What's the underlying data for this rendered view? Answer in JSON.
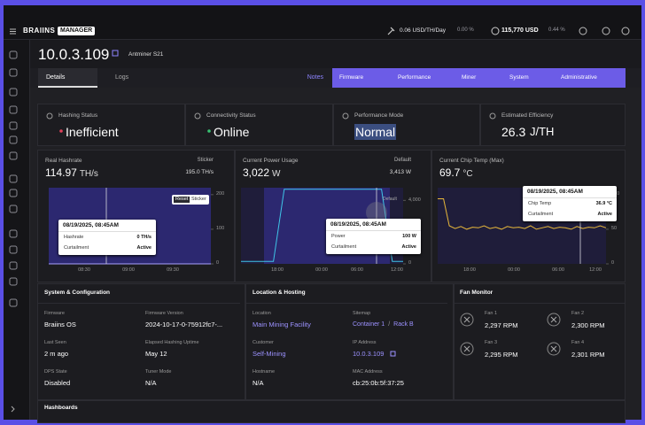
{
  "topbar": {
    "logo": "BRAIINS",
    "logo_tag": "MANAGER",
    "hashprice": "0.06 USD/TH/Day",
    "hashprice_change": "0.00 %",
    "btc_price": "115,770 USD",
    "btc_change": "0.44 %"
  },
  "header": {
    "ip": "10.0.3.109",
    "model": "Antminer S21"
  },
  "tabs": [
    "Details",
    "Logs"
  ],
  "notes": "Notes",
  "actions": [
    "Firmware",
    "Performance",
    "Miner",
    "System",
    "Administrative"
  ],
  "cards": [
    {
      "label": "Hashing Status",
      "value": "Inefficient"
    },
    {
      "label": "Connectivity Status",
      "value": "Online"
    },
    {
      "label": "Performance Mode",
      "value": "Normal"
    },
    {
      "label": "Estimated Efficiency",
      "value": "26.3",
      "unit": "J/TH"
    }
  ],
  "charts": [
    {
      "type": "line",
      "title": "Real Hashrate",
      "value": "114.97",
      "unit": "TH/s",
      "ref_label": "Sticker",
      "ref_value": "195.0 TH/s",
      "buttons": [
        "Reset",
        "Sticker"
      ],
      "color": "#a89fff",
      "ylim": [
        0,
        220
      ],
      "yticks": [
        0,
        100,
        200
      ],
      "xticks": [
        "08:30",
        "09:00",
        "09:30"
      ],
      "values": [
        0,
        0,
        0,
        0,
        0,
        0,
        0,
        0,
        0,
        0,
        0,
        0
      ],
      "tooltip": {
        "time": "08/19/2025, 08:45AM",
        "rows": [
          [
            "Hashrate",
            "0 TH/s"
          ],
          [
            "Curtailment",
            "Active"
          ]
        ]
      }
    },
    {
      "type": "line",
      "title": "Current Power Usage",
      "value": "3,022",
      "unit": "W",
      "ref_label": "Default",
      "ref_value": "3,413 W",
      "line_label": "Default",
      "color": "#3fc5e8",
      "ylim": [
        0,
        4800
      ],
      "yticks": [
        {
          "value": 0,
          "label": "0"
        },
        {
          "value": 2000,
          "label": "2,000"
        },
        {
          "value": 4000,
          "label": "4,000"
        }
      ],
      "xticks": [
        "18:00",
        "00:00",
        "06:00",
        "12:00"
      ],
      "values": [
        150,
        150,
        150,
        150,
        4700,
        4700,
        4700,
        4700,
        4700,
        4700,
        4700,
        4700,
        4700,
        4700,
        150,
        150
      ],
      "tooltip": {
        "time": "08/19/2025, 08:45AM",
        "rows": [
          [
            "Power",
            "100 W"
          ],
          [
            "Curtailment",
            "Active"
          ]
        ]
      }
    },
    {
      "type": "line",
      "title": "Current Chip Temp (Max)",
      "value": "69.7",
      "unit": "°C",
      "color": "#e8b83a",
      "ylim": [
        0,
        110
      ],
      "yticks": [
        0,
        50,
        100
      ],
      "xticks": [
        "18:00",
        "00:00",
        "06:00",
        "12:00"
      ],
      "values": [
        94,
        94,
        55,
        51,
        54,
        50,
        53,
        52,
        55,
        51,
        53,
        50,
        54,
        52,
        53,
        51,
        55,
        50,
        52,
        54,
        51,
        53,
        52,
        50,
        54,
        51,
        53,
        52,
        55,
        52
      ],
      "tooltip": {
        "time": "08/19/2025, 08:45AM",
        "rows": [
          [
            "Chip Temp",
            "36.9 °C"
          ],
          [
            "Curtailment",
            "Active"
          ]
        ]
      }
    }
  ],
  "system": {
    "title": "System & Configuration",
    "fields": [
      {
        "label": "Firmware",
        "value": "Braiins OS"
      },
      {
        "label": "Firmware Version",
        "value": "2024-10-17-0-75912fc7-..."
      },
      {
        "label": "Last Seen",
        "value": "2 m ago"
      },
      {
        "label": "Elapsed Hashing Uptime",
        "value": "May 12"
      },
      {
        "label": "DPS State",
        "value": "Disabled"
      },
      {
        "label": "Tuner Mode",
        "value": "N/A"
      }
    ]
  },
  "location": {
    "title": "Location & Hosting",
    "fields": [
      {
        "label": "Location",
        "value": "Main Mining Facility",
        "link": true
      },
      {
        "label": "Sitemap",
        "value": [
          "Container 1",
          "/",
          "Rack B"
        ],
        "link": true
      },
      {
        "label": "Customer",
        "value": "Self-Mining",
        "link": true
      },
      {
        "label": "IP Address",
        "value": "10.0.3.109",
        "link": true
      },
      {
        "label": "Hostname",
        "value": "N/A"
      },
      {
        "label": "MAC Address",
        "value": "cb:25:0b:5f:37:25"
      }
    ]
  },
  "fans": {
    "title": "Fan Monitor",
    "items": [
      {
        "name": "Fan 1",
        "value": "2,297 RPM"
      },
      {
        "name": "Fan 2",
        "value": "2,300 RPM"
      },
      {
        "name": "Fan 3",
        "value": "2,295 RPM"
      },
      {
        "name": "Fan 4",
        "value": "2,301 RPM"
      }
    ]
  },
  "hashboards": "Hashboards"
}
